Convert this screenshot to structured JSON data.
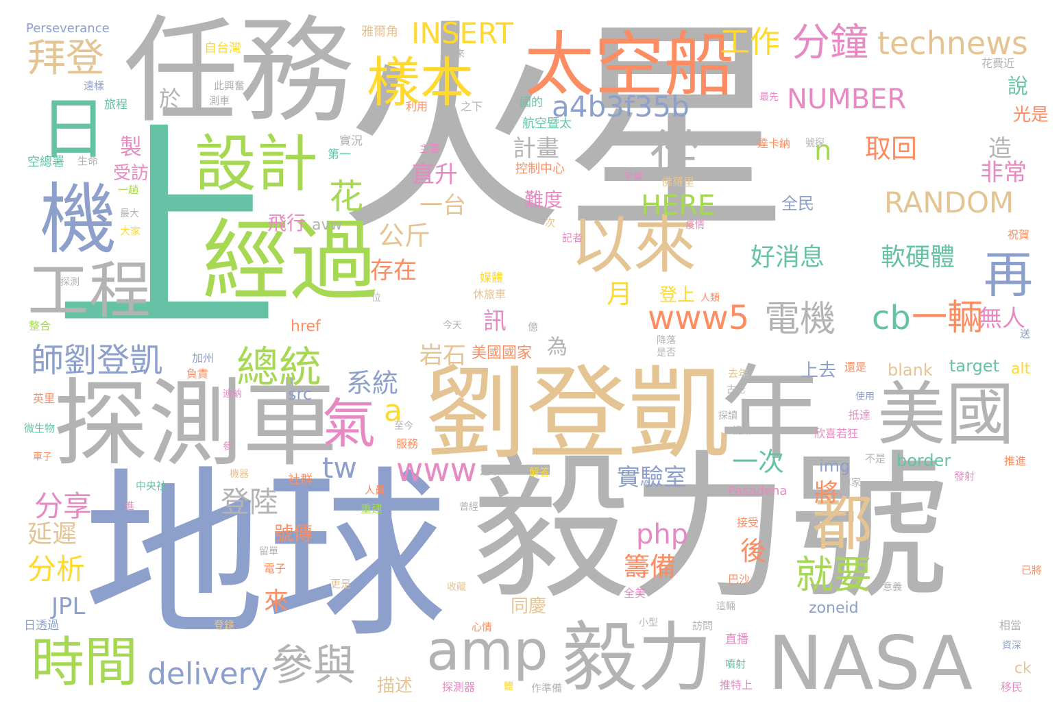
{
  "palette": {
    "gray": "#b3b3b3",
    "green": "#66c2a5",
    "lime": "#a6d854",
    "orange": "#fc8d62",
    "blue": "#8da0cb",
    "pink": "#e78ac3",
    "tan": "#e5c494",
    "yellow": "#ffd92f"
  },
  "words": [
    {
      "text": "火星",
      "color": "gray"
    },
    {
      "text": "上",
      "color": "green"
    },
    {
      "text": "地球",
      "color": "blue"
    },
    {
      "text": "毅力號",
      "color": "gray"
    },
    {
      "text": "任務",
      "color": "gray"
    },
    {
      "text": "劉登凱",
      "color": "tan"
    },
    {
      "text": "探測車",
      "color": "gray"
    },
    {
      "text": "NASA",
      "color": "gray"
    },
    {
      "text": "經過",
      "color": "lime"
    },
    {
      "text": "年",
      "color": "gray"
    },
    {
      "text": "太空船",
      "color": "orange"
    },
    {
      "text": "機",
      "color": "blue"
    },
    {
      "text": "美國",
      "color": "gray"
    },
    {
      "text": "毅力",
      "color": "gray"
    },
    {
      "text": "設計",
      "color": "lime"
    },
    {
      "text": "工程",
      "color": "gray"
    },
    {
      "text": "以來",
      "color": "tan"
    },
    {
      "text": "日",
      "color": "green"
    },
    {
      "text": "amp",
      "color": "gray"
    },
    {
      "text": "樣本",
      "color": "yellow"
    },
    {
      "text": "時間",
      "color": "lime"
    },
    {
      "text": "都",
      "color": "tan"
    },
    {
      "text": "再",
      "color": "blue"
    },
    {
      "text": "氣",
      "color": "pink"
    },
    {
      "text": "從",
      "color": "gray"
    },
    {
      "text": "總統",
      "color": "lime"
    },
    {
      "text": "參與",
      "color": "gray"
    },
    {
      "text": "分鐘",
      "color": "pink"
    },
    {
      "text": "technews",
      "color": "tan"
    },
    {
      "text": "拜登",
      "color": "tan"
    },
    {
      "text": "師劉登凱",
      "color": "blue"
    },
    {
      "text": "www5",
      "color": "orange"
    },
    {
      "text": "a4b3f35b",
      "color": "blue"
    },
    {
      "text": "INSERT",
      "color": "yellow"
    },
    {
      "text": "工作",
      "color": "yellow"
    },
    {
      "text": "RANDOM",
      "color": "tan"
    },
    {
      "text": "NUMBER",
      "color": "pink"
    },
    {
      "text": "電機",
      "color": "gray"
    },
    {
      "text": "就要",
      "color": "lime"
    },
    {
      "text": "www",
      "color": "pink"
    },
    {
      "text": "delivery",
      "color": "blue"
    },
    {
      "text": "HERE",
      "color": "lime"
    },
    {
      "text": "cb",
      "color": "green"
    },
    {
      "text": "一輛",
      "color": "orange"
    },
    {
      "text": "php",
      "color": "pink"
    },
    {
      "text": "實驗室",
      "color": "blue"
    },
    {
      "text": "花",
      "color": "lime"
    },
    {
      "text": "分享",
      "color": "pink"
    },
    {
      "text": "分析",
      "color": "yellow"
    },
    {
      "text": "JPL",
      "color": "blue"
    },
    {
      "text": "tw",
      "color": "blue"
    },
    {
      "text": "a",
      "color": "yellow"
    },
    {
      "text": "n",
      "color": "lime"
    },
    {
      "text": "取回",
      "color": "orange"
    },
    {
      "text": "好消息",
      "color": "green"
    },
    {
      "text": "軟硬體",
      "color": "green"
    },
    {
      "text": "籌備",
      "color": "orange"
    },
    {
      "text": "登陸",
      "color": "gray"
    },
    {
      "text": "一次",
      "color": "green"
    },
    {
      "text": "公斤",
      "color": "tan"
    },
    {
      "text": "存在",
      "color": "orange"
    },
    {
      "text": "系統",
      "color": "blue"
    },
    {
      "text": "岩石",
      "color": "tan"
    },
    {
      "text": "延遲",
      "color": "tan"
    },
    {
      "text": "後",
      "color": "orange"
    },
    {
      "text": "將",
      "color": "orange"
    },
    {
      "text": "來",
      "color": "orange"
    },
    {
      "text": "訊",
      "color": "pink"
    },
    {
      "text": "直升",
      "color": "pink"
    },
    {
      "text": "一台",
      "color": "tan"
    },
    {
      "text": "計畫",
      "color": "gray"
    },
    {
      "text": "難度",
      "color": "pink"
    },
    {
      "text": "飛行",
      "color": "pink"
    },
    {
      "text": "月",
      "color": "yellow"
    },
    {
      "text": "無人",
      "color": "pink"
    },
    {
      "text": "非常",
      "color": "pink"
    },
    {
      "text": "造",
      "color": "gray"
    },
    {
      "text": "說",
      "color": "green"
    },
    {
      "text": "光是",
      "color": "orange"
    },
    {
      "text": "製",
      "color": "pink"
    },
    {
      "text": "受訪",
      "color": "pink"
    },
    {
      "text": "於",
      "color": "gray"
    },
    {
      "text": "為",
      "color": "gray"
    },
    {
      "text": "號傳",
      "color": "orange"
    },
    {
      "text": "同慶",
      "color": "tan"
    },
    {
      "text": "描述",
      "color": "tan"
    },
    {
      "text": "美國國家",
      "color": "orange"
    },
    {
      "text": "全民",
      "color": "blue"
    },
    {
      "text": "上去",
      "color": "blue"
    },
    {
      "text": "登上",
      "color": "yellow"
    },
    {
      "text": "border",
      "color": "green"
    },
    {
      "text": "blank",
      "color": "tan"
    },
    {
      "text": "target",
      "color": "green"
    },
    {
      "text": "alt",
      "color": "yellow"
    },
    {
      "text": "img",
      "color": "blue"
    },
    {
      "text": "src",
      "color": "blue"
    },
    {
      "text": "href",
      "color": "orange"
    },
    {
      "text": "zoneid",
      "color": "blue"
    },
    {
      "text": "avw",
      "color": "gray"
    },
    {
      "text": "Pasadena",
      "color": "pink"
    },
    {
      "text": "ck",
      "color": "tan"
    },
    {
      "text": "Perseverance",
      "color": "blue"
    },
    {
      "text": "雅爾角",
      "color": "tan"
    },
    {
      "text": "自台灣",
      "color": "yellow"
    },
    {
      "text": "未來",
      "color": "gray"
    },
    {
      "text": "此興奮",
      "color": "gray"
    },
    {
      "text": "遠樣",
      "color": "blue"
    },
    {
      "text": "旅程",
      "color": "green"
    },
    {
      "text": "測車",
      "color": "gray"
    },
    {
      "text": "利用",
      "color": "orange"
    },
    {
      "text": "之下",
      "color": "gray"
    },
    {
      "text": "國的",
      "color": "green"
    },
    {
      "text": "航空暨太",
      "color": "green"
    },
    {
      "text": "最先",
      "color": "pink"
    },
    {
      "text": "花費近",
      "color": "gray"
    },
    {
      "text": "空總署",
      "color": "green"
    },
    {
      "text": "生命",
      "color": "gray"
    },
    {
      "text": "實況",
      "color": "gray"
    },
    {
      "text": "第一",
      "color": "green"
    },
    {
      "text": "主要",
      "color": "pink"
    },
    {
      "text": "控制中心",
      "color": "orange"
    },
    {
      "text": "達卡納",
      "color": "orange"
    },
    {
      "text": "號探",
      "color": "gray"
    },
    {
      "text": "一趟",
      "color": "lime"
    },
    {
      "text": "手臂",
      "color": "pink"
    },
    {
      "text": "佛羅里",
      "color": "tan"
    },
    {
      "text": "最大",
      "color": "gray"
    },
    {
      "text": "次",
      "color": "tan"
    },
    {
      "text": "疫情",
      "color": "pink"
    },
    {
      "text": "大家",
      "color": "yellow"
    },
    {
      "text": "記者",
      "color": "pink"
    },
    {
      "text": "祝賀",
      "color": "orange"
    },
    {
      "text": "探測",
      "color": "gray"
    },
    {
      "text": "媒體",
      "color": "yellow"
    },
    {
      "text": "位",
      "color": "gray"
    },
    {
      "text": "休旅車",
      "color": "tan"
    },
    {
      "text": "人類",
      "color": "orange"
    },
    {
      "text": "整合",
      "color": "lime"
    },
    {
      "text": "今天",
      "color": "gray"
    },
    {
      "text": "億",
      "color": "gray"
    },
    {
      "text": "加州",
      "color": "blue"
    },
    {
      "text": "負責",
      "color": "orange"
    },
    {
      "text": "降落",
      "color": "gray"
    },
    {
      "text": "是否",
      "color": "gray"
    },
    {
      "text": "送",
      "color": "blue"
    },
    {
      "text": "還是",
      "color": "orange"
    },
    {
      "text": "英里",
      "color": "orange"
    },
    {
      "text": "迪納",
      "color": "pink"
    },
    {
      "text": "去年",
      "color": "tan"
    },
    {
      "text": "古老",
      "color": "gray"
    },
    {
      "text": "使用",
      "color": "blue"
    },
    {
      "text": "探讀",
      "color": "gray"
    },
    {
      "text": "抵達",
      "color": "pink"
    },
    {
      "text": "微生物",
      "color": "green"
    },
    {
      "text": "至今",
      "color": "gray"
    },
    {
      "text": "服務",
      "color": "orange"
    },
    {
      "text": "視訊",
      "color": "gray"
    },
    {
      "text": "欣喜若狂",
      "color": "pink"
    },
    {
      "text": "參",
      "color": "pink"
    },
    {
      "text": "車子",
      "color": "orange"
    },
    {
      "text": "機器",
      "color": "tan"
    },
    {
      "text": "社群",
      "color": "orange"
    },
    {
      "text": "還不",
      "color": "gray"
    },
    {
      "text": "解答",
      "color": "yellow"
    },
    {
      "text": "不是",
      "color": "gray"
    },
    {
      "text": "推進",
      "color": "orange"
    },
    {
      "text": "發射",
      "color": "pink"
    },
    {
      "text": "專家",
      "color": "gray"
    },
    {
      "text": "中央社",
      "color": "green"
    },
    {
      "text": "人員",
      "color": "orange"
    },
    {
      "text": "進",
      "color": "pink"
    },
    {
      "text": "重建",
      "color": "lime"
    },
    {
      "text": "曾經",
      "color": "gray"
    },
    {
      "text": "接受",
      "color": "orange"
    },
    {
      "text": "留單",
      "color": "gray"
    },
    {
      "text": "電子",
      "color": "orange"
    },
    {
      "text": "巴沙",
      "color": "orange"
    },
    {
      "text": "已將",
      "color": "orange"
    },
    {
      "text": "更是",
      "color": "tan"
    },
    {
      "text": "收藏",
      "color": "tan"
    },
    {
      "text": "意義",
      "color": "gray"
    },
    {
      "text": "全美",
      "color": "pink"
    },
    {
      "text": "這輛",
      "color": "gray"
    },
    {
      "text": "日透過",
      "color": "blue"
    },
    {
      "text": "登錄",
      "color": "tan"
    },
    {
      "text": "心情",
      "color": "orange"
    },
    {
      "text": "小型",
      "color": "gray"
    },
    {
      "text": "訪問",
      "color": "gray"
    },
    {
      "text": "直播",
      "color": "pink"
    },
    {
      "text": "相當",
      "color": "gray"
    },
    {
      "text": "資深",
      "color": "blue"
    },
    {
      "text": "噴射",
      "color": "green"
    },
    {
      "text": "探測器",
      "color": "pink"
    },
    {
      "text": "體",
      "color": "yellow"
    },
    {
      "text": "作準備",
      "color": "gray"
    },
    {
      "text": "推特上",
      "color": "pink"
    },
    {
      "text": "移民",
      "color": "pink"
    }
  ]
}
